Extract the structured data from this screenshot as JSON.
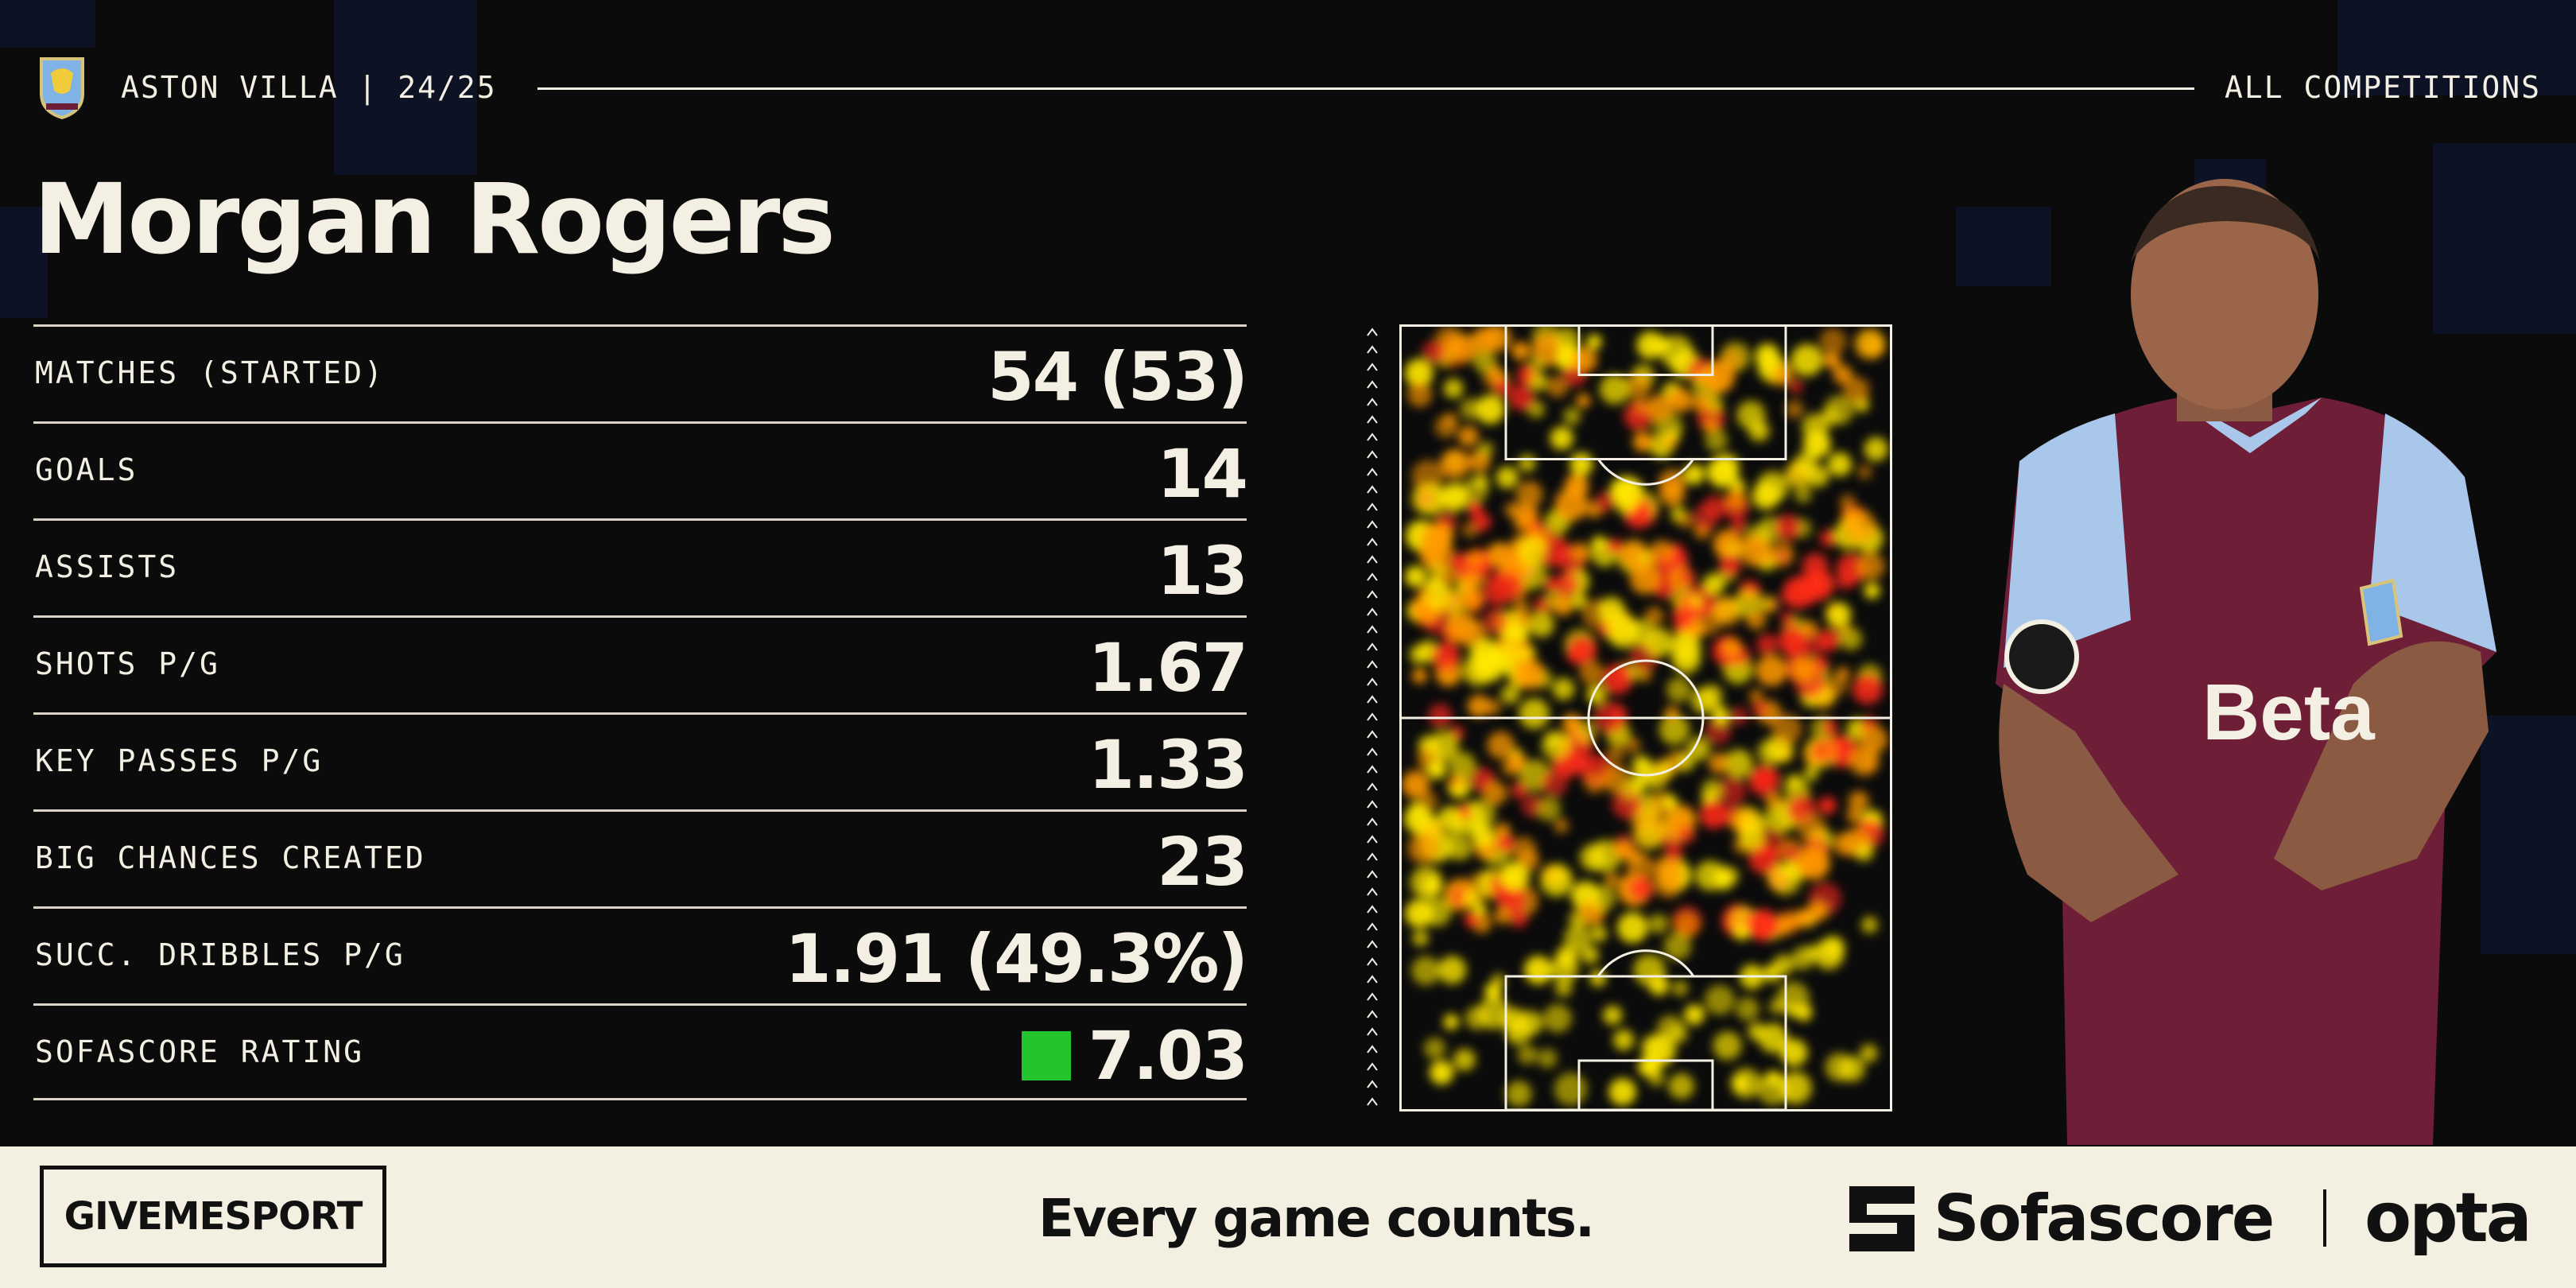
{
  "header": {
    "club": "ASTON VILLA | 24/25",
    "competition": "ALL COMPETITIONS",
    "crest_icon": "aston-villa-crest-icon"
  },
  "player": {
    "name": "Morgan Rogers"
  },
  "stats": [
    {
      "label": "MATCHES (STARTED)",
      "value": "54 (53)"
    },
    {
      "label": "GOALS",
      "value": "14"
    },
    {
      "label": "ASSISTS",
      "value": "13"
    },
    {
      "label": "SHOTS P/G",
      "value": "1.67"
    },
    {
      "label": "KEY PASSES P/G",
      "value": "1.33"
    },
    {
      "label": "BIG CHANCES CREATED",
      "value": "23"
    },
    {
      "label": "SUCC. DRIBBLES P/G",
      "value": "1.91 (49.3%)"
    },
    {
      "label": "SOFASCORE RATING",
      "value": "7.03",
      "rating_color": "#22c42e"
    }
  ],
  "footer": {
    "publisher": "GIVEMESPORT",
    "tagline": "Every game counts.",
    "sofascore": "Sofascore",
    "opta": "opta"
  },
  "colors": {
    "background": "#0b0b0c",
    "text": "#f3efe3",
    "footer_bg": "#f3efe1",
    "heat_hot": "#ff2a1a",
    "heat_mid": "#ff9a00",
    "heat_low": "#ffe800"
  }
}
